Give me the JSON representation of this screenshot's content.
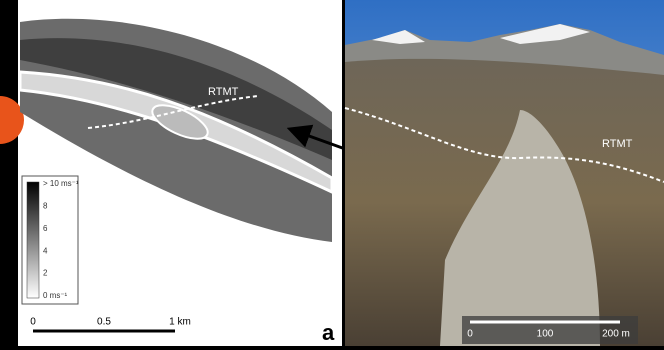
{
  "left_panel": {
    "rtmt_label": "RTMT",
    "legend": {
      "labels": [
        "> 10 ms⁻¹",
        "8",
        "6",
        "4",
        "2",
        "0 ms⁻¹"
      ]
    },
    "scale_bar": {
      "labels": [
        "0",
        "0.5",
        "1 km"
      ]
    },
    "panel_label": "a"
  },
  "right_panel": {
    "rtmt_label": "RTMT",
    "scale_bar": {
      "labels": [
        "0",
        "100",
        "200 m"
      ]
    }
  }
}
